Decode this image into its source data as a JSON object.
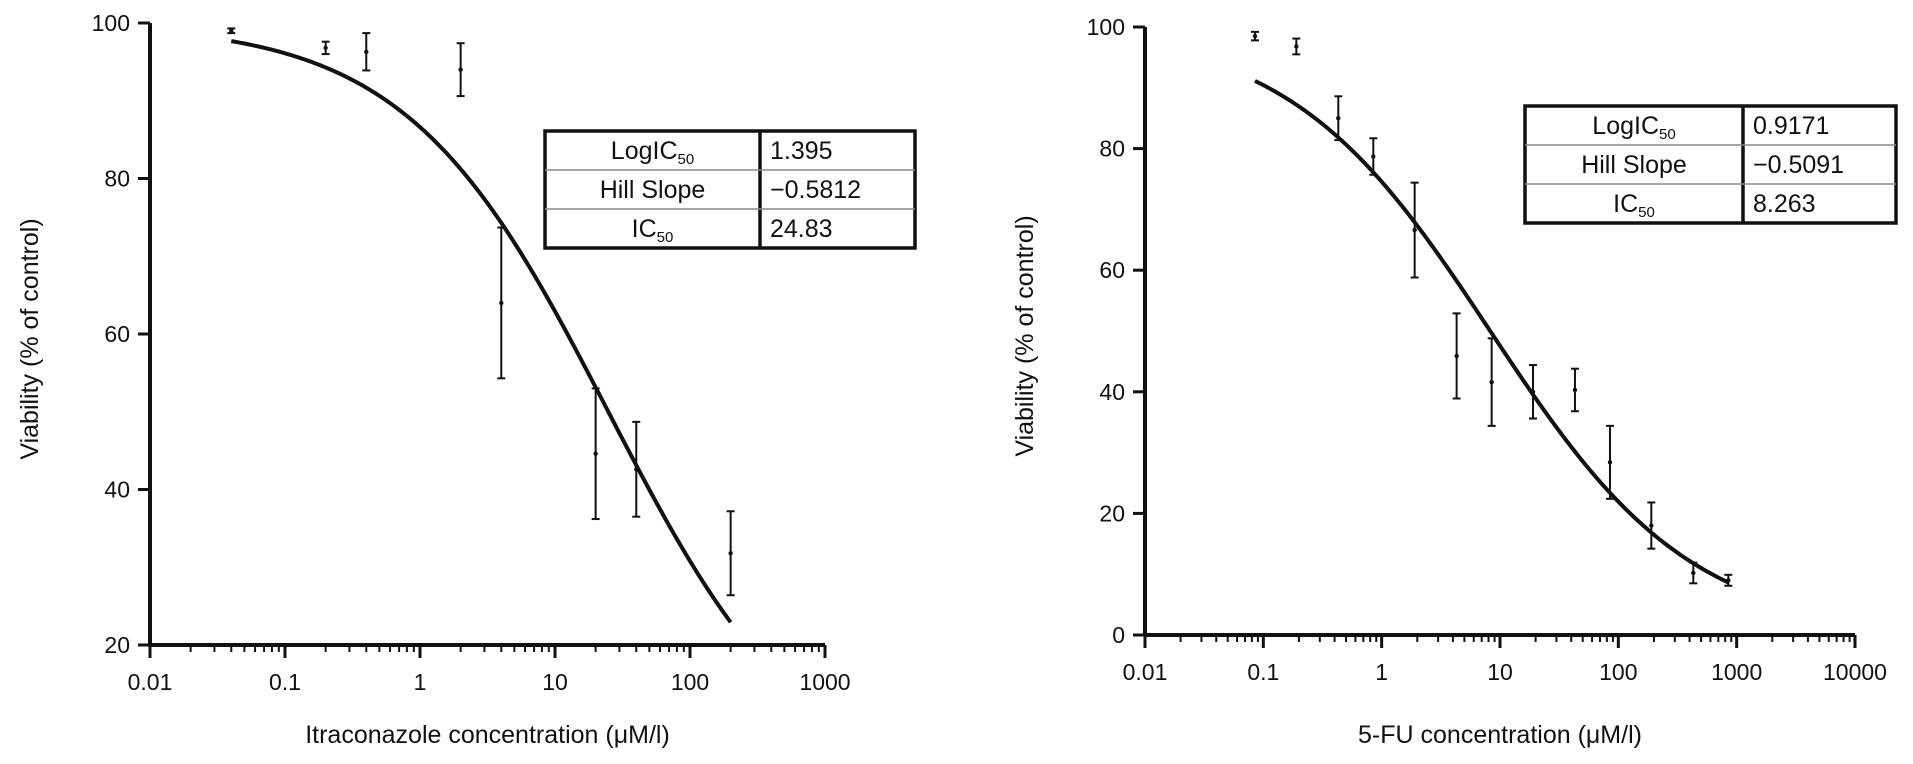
{
  "chart_data": [
    {
      "type": "line",
      "xlabel": "Itraconazole concentration (μM/l)",
      "ylabel": "Viability (% of control)",
      "x_scale": "log",
      "xlim": [
        0.01,
        1000
      ],
      "ylim": [
        20,
        100
      ],
      "x_ticks": [
        0.01,
        0.1,
        1,
        10,
        100,
        1000
      ],
      "x_tick_labels": [
        "0.01",
        "0.1",
        "1",
        "10",
        "100",
        "1000"
      ],
      "y_ticks": [
        20,
        40,
        60,
        80,
        100
      ],
      "y_tick_labels": [
        "20",
        "40",
        "60",
        "80",
        "100"
      ],
      "grid": false,
      "points": [
        {
          "x": 0.04,
          "y": 99.0,
          "err": 0.3
        },
        {
          "x": 0.2,
          "y": 96.8,
          "err": 0.8
        },
        {
          "x": 0.4,
          "y": 96.3,
          "err": 2.4
        },
        {
          "x": 2,
          "y": 94.0,
          "err": 3.4
        },
        {
          "x": 4,
          "y": 64.0,
          "err": 9.7
        },
        {
          "x": 20,
          "y": 44.6,
          "err": 8.4
        },
        {
          "x": 40,
          "y": 42.6,
          "err": 6.1
        },
        {
          "x": 200,
          "y": 31.8,
          "err": 5.4
        }
      ],
      "fit": {
        "top": 100,
        "bottom": 0,
        "logIC50": 1.395,
        "hill": -0.5812,
        "x_range": [
          0.04,
          200
        ]
      },
      "table": [
        {
          "label": "LogIC",
          "sub": "50",
          "value": "1.395"
        },
        {
          "label": "Hill  Slope",
          "sub": "",
          "value": "−0.5812"
        },
        {
          "label": "IC",
          "sub": "50",
          "value": "24.83"
        }
      ]
    },
    {
      "type": "line",
      "xlabel": "5-FU concentration (μM/l)",
      "ylabel": "Viability (% of control)",
      "x_scale": "log",
      "xlim": [
        0.01,
        10000
      ],
      "ylim": [
        0,
        100
      ],
      "x_ticks": [
        0.01,
        0.1,
        1,
        10,
        100,
        1000,
        10000
      ],
      "x_tick_labels": [
        "0.01",
        "0.1",
        "1",
        "10",
        "100",
        "1000",
        "10000"
      ],
      "y_ticks": [
        0,
        20,
        40,
        60,
        80,
        100
      ],
      "y_tick_labels": [
        "0",
        "20",
        "40",
        "60",
        "80",
        "100"
      ],
      "grid": false,
      "points": [
        {
          "x": 0.085,
          "y": 98.5,
          "err": 0.7
        },
        {
          "x": 0.19,
          "y": 96.8,
          "err": 1.3
        },
        {
          "x": 0.43,
          "y": 85.0,
          "err": 3.6
        },
        {
          "x": 0.85,
          "y": 78.7,
          "err": 3.0
        },
        {
          "x": 1.9,
          "y": 66.6,
          "err": 7.8
        },
        {
          "x": 4.3,
          "y": 45.9,
          "err": 7.0
        },
        {
          "x": 8.5,
          "y": 41.6,
          "err": 7.2
        },
        {
          "x": 19,
          "y": 40.0,
          "err": 4.4
        },
        {
          "x": 43,
          "y": 40.3,
          "err": 3.5
        },
        {
          "x": 85,
          "y": 28.4,
          "err": 6.0
        },
        {
          "x": 190,
          "y": 18.0,
          "err": 3.8
        },
        {
          "x": 430,
          "y": 10.2,
          "err": 1.7
        },
        {
          "x": 850,
          "y": 9.0,
          "err": 0.9
        }
      ],
      "fit": {
        "top": 100,
        "bottom": 0,
        "logIC50": 0.9171,
        "hill": -0.5091,
        "x_range": [
          0.085,
          850
        ]
      },
      "table": [
        {
          "label": "LogIC",
          "sub": "50",
          "value": "0.9171"
        },
        {
          "label": "Hill  Slope",
          "sub": "",
          "value": "−0.5091"
        },
        {
          "label": "IC",
          "sub": "50",
          "value": "8.263"
        }
      ]
    }
  ]
}
